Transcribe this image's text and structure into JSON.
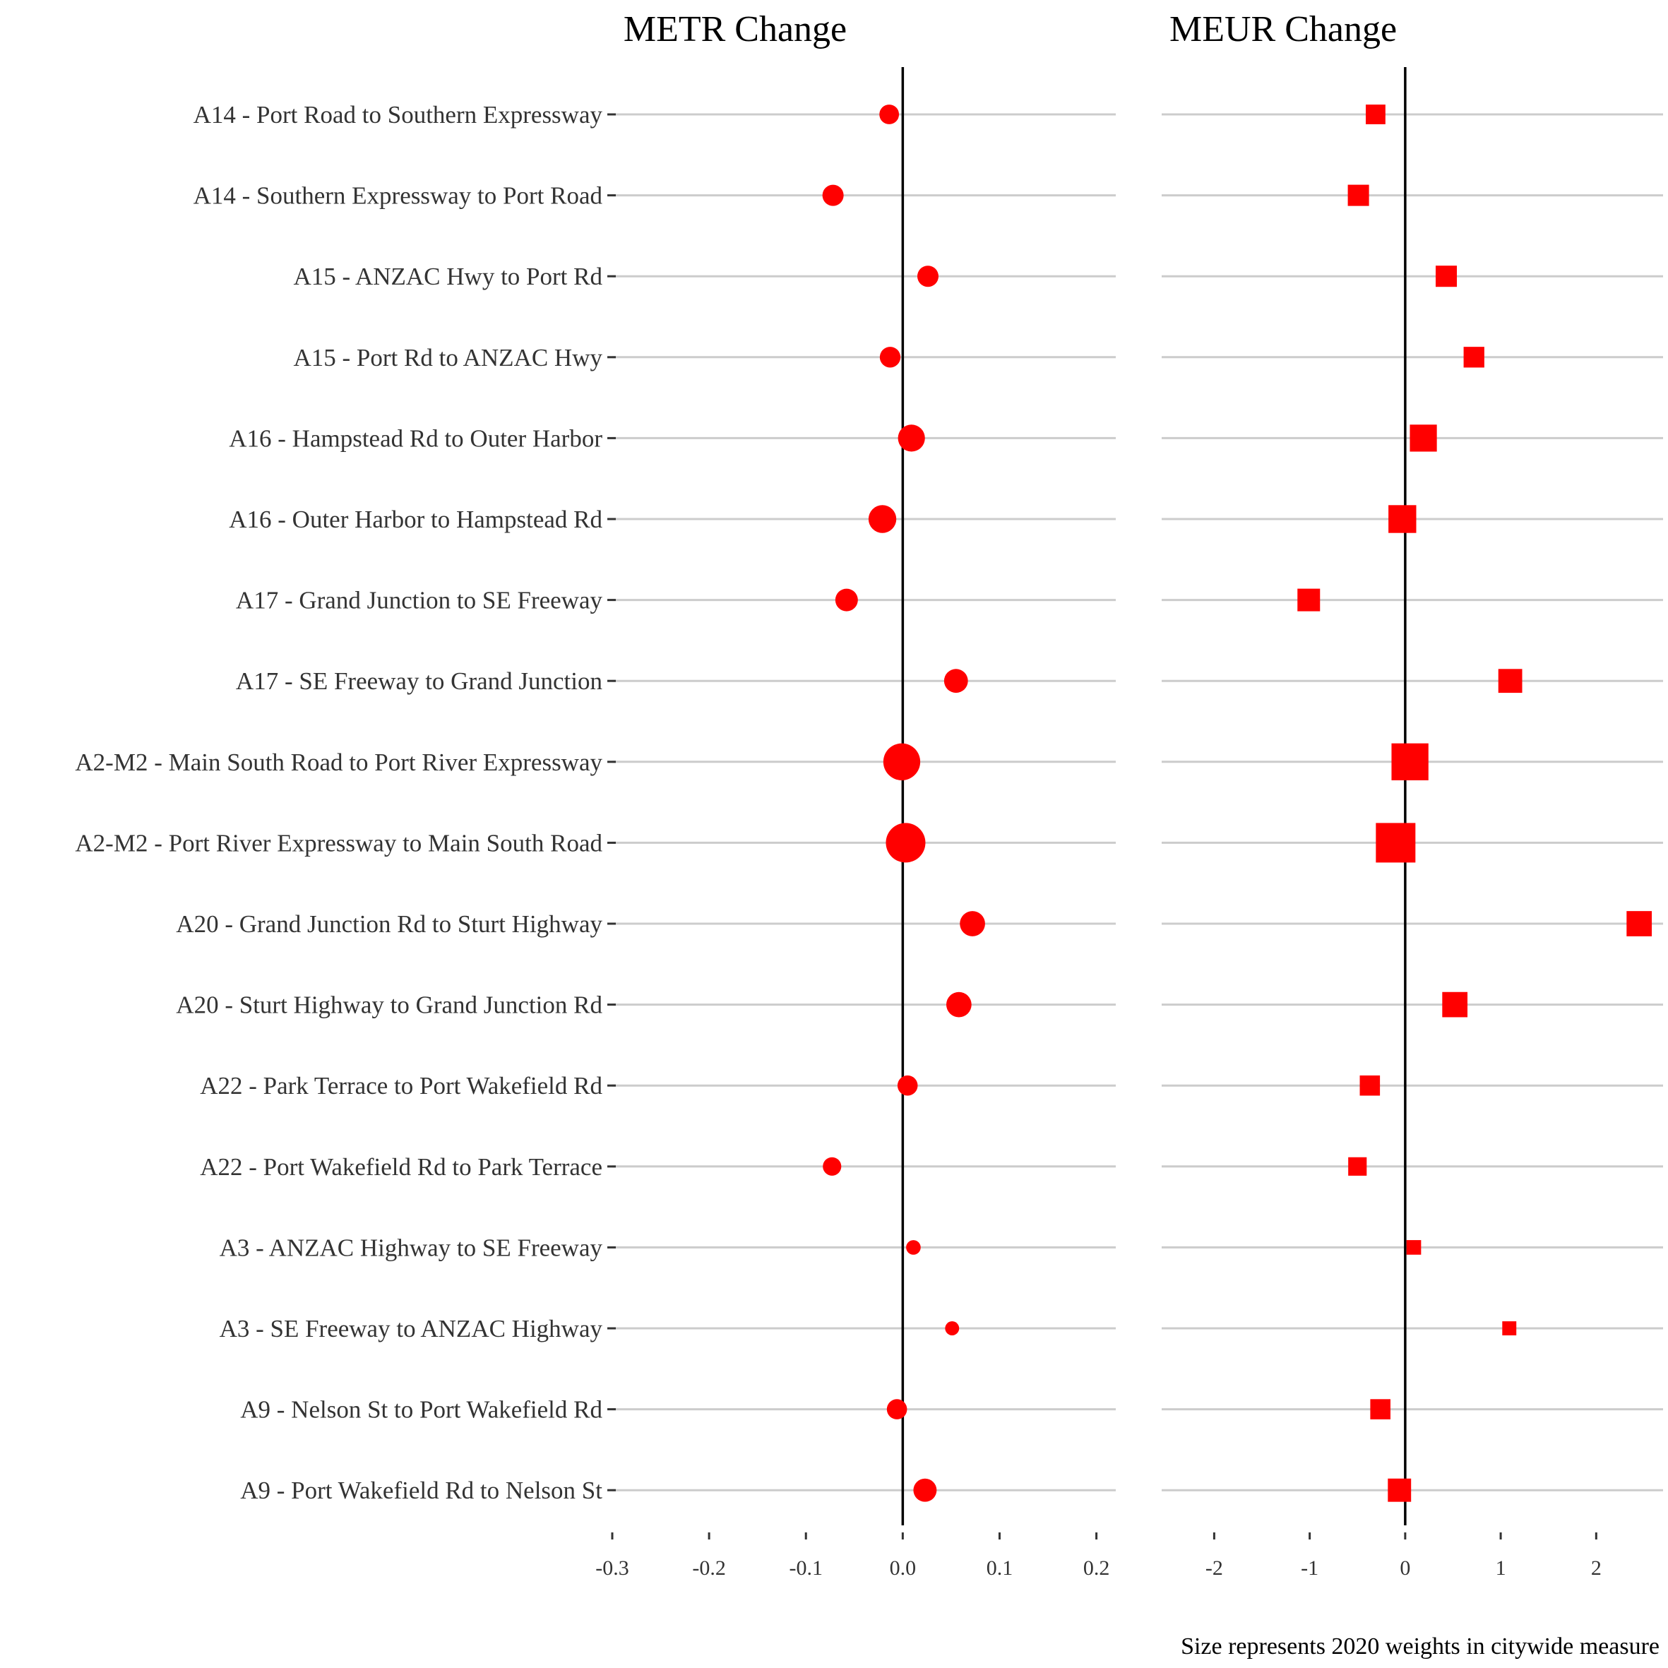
{
  "chart_data": [
    {
      "type": "scatter",
      "title": "METR Change",
      "xlim": [
        -0.3,
        0.22
      ],
      "xticks": [
        -0.3,
        -0.2,
        -0.1,
        0.0,
        0.1,
        0.2
      ],
      "xtick_labels": [
        "-0.3",
        "-0.2",
        "-0.1",
        "0.0",
        "0.1",
        "0.2"
      ],
      "marker": "circle",
      "color": "#ff0000",
      "reference_line": 0
    },
    {
      "type": "scatter",
      "title": "MEUR Change",
      "xlim": [
        -2.55,
        2.7
      ],
      "xticks": [
        -2,
        -1,
        0,
        1,
        2
      ],
      "xtick_labels": [
        "-2",
        "-1",
        "0",
        "1",
        "2"
      ],
      "marker": "square",
      "color": "#ff0000",
      "reference_line": 0
    }
  ],
  "rows": [
    {
      "label": "A14 - Port Road to Southern Expressway",
      "metr": -0.014,
      "meur": -0.31,
      "weight": 0.02
    },
    {
      "label": "A14 - Southern Expressway to Port Road",
      "metr": -0.072,
      "meur": -0.49,
      "weight": 0.026
    },
    {
      "label": "A15 - ANZAC Hwy to Port Rd",
      "metr": 0.026,
      "meur": 0.43,
      "weight": 0.026
    },
    {
      "label": "A15 - Port Rd to ANZAC Hwy",
      "metr": -0.013,
      "meur": 0.72,
      "weight": 0.024
    },
    {
      "label": "A16 - Hampstead Rd to Outer Harbor",
      "metr": 0.009,
      "meur": 0.19,
      "weight": 0.055
    },
    {
      "label": "A16 - Outer Harbor to Hampstead Rd",
      "metr": -0.021,
      "meur": -0.03,
      "weight": 0.06
    },
    {
      "label": "A17 - Grand Junction to SE Freeway",
      "metr": -0.058,
      "meur": -1.01,
      "weight": 0.032
    },
    {
      "label": "A17 - SE Freeway to Grand Junction",
      "metr": 0.055,
      "meur": 1.1,
      "weight": 0.038
    },
    {
      "label": "A2-M2 - Main South Road to Port River Expressway",
      "metr": -0.001,
      "meur": 0.05,
      "weight": 0.13
    },
    {
      "label": "A2-M2 - Port River Expressway to Main South Road",
      "metr": 0.003,
      "meur": -0.1,
      "weight": 0.155
    },
    {
      "label": "A20 - Grand Junction Rd to Sturt Highway",
      "metr": 0.072,
      "meur": 2.45,
      "weight": 0.045
    },
    {
      "label": "A20 - Sturt Highway to Grand Junction Rd",
      "metr": 0.058,
      "meur": 0.52,
      "weight": 0.045
    },
    {
      "label": "A22 - Park Terrace to Port Wakefield Rd",
      "metr": 0.005,
      "meur": -0.37,
      "weight": 0.022
    },
    {
      "label": "A22 - Port Wakefield Rd to Park Terrace",
      "metr": -0.073,
      "meur": -0.5,
      "weight": 0.016
    },
    {
      "label": "A3 - ANZAC Highway to SE Freeway",
      "metr": 0.011,
      "meur": 0.09,
      "weight": 0.006
    },
    {
      "label": "A3 - SE Freeway to ANZAC Highway",
      "metr": 0.051,
      "meur": 1.09,
      "weight": 0.005
    },
    {
      "label": "A9 - Nelson St to Port Wakefield Rd",
      "metr": -0.006,
      "meur": -0.26,
      "weight": 0.022
    },
    {
      "label": "A9 - Port Wakefield Rd to Nelson St",
      "metr": 0.023,
      "meur": -0.06,
      "weight": 0.035
    }
  ],
  "caption": "Size represents 2020 weights in citywide measure"
}
